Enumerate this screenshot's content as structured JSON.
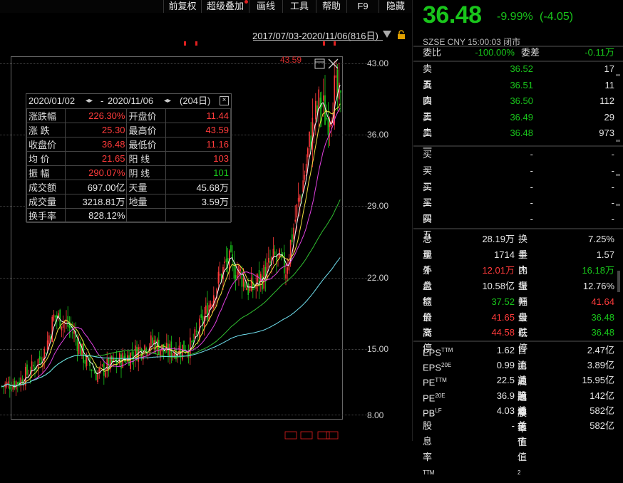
{
  "toolbar": {
    "items": [
      "前复权",
      "超级叠加",
      "画线",
      "工具",
      "帮助",
      "F9",
      "隐藏"
    ]
  },
  "chart": {
    "range_text": "2017/07/03-2020/11/06(816日)",
    "high_marker": "43.59",
    "y_ticks": [
      "43.00",
      "36.00",
      "29.00",
      "22.00",
      "15.00",
      "8.00"
    ]
  },
  "stats": {
    "period": "2020/01/02",
    "period_sep": "-",
    "period_end": "2020/11/06",
    "days": "(204日)",
    "rows": [
      {
        "l1": "涨跌幅",
        "v1": "226.30%",
        "c1": "red",
        "l2": "开盘价",
        "v2": "11.44",
        "c2": "red"
      },
      {
        "l1": "涨 跌",
        "v1": "25.30",
        "c1": "red",
        "l2": "最高价",
        "v2": "43.59",
        "c2": "red"
      },
      {
        "l1": "收盘价",
        "v1": "36.48",
        "c1": "red",
        "l2": "最低价",
        "v2": "11.16",
        "c2": "red"
      },
      {
        "l1": "均 价",
        "v1": "21.65",
        "c1": "red",
        "l2": "阳 线",
        "v2": "103",
        "c2": "red"
      },
      {
        "l1": "振 幅",
        "v1": "290.07%",
        "c1": "red",
        "l2": "阴 线",
        "v2": "101",
        "c2": "green"
      },
      {
        "l1": "成交额",
        "v1": "697.00亿",
        "c1": "white",
        "l2": "天量",
        "v2": "45.68万",
        "c2": "white"
      },
      {
        "l1": "成交量",
        "v1": "3218.81万",
        "c1": "white",
        "l2": "地量",
        "v2": "3.59万",
        "c2": "white"
      },
      {
        "l1": "换手率",
        "v1": "828.12%",
        "c1": "white",
        "l2": "",
        "v2": "",
        "c2": "white"
      }
    ]
  },
  "quote": {
    "price": "36.48",
    "change_pct": "-9.99%",
    "change_abs": "(-4.05)",
    "sub": "SZSE  CNY  15:00:03  闭市",
    "weibi_label": "委比",
    "weibi_value": "-100.00%",
    "weicha_label": "委差",
    "weicha_value": "-0.11万"
  },
  "sell_orders": [
    {
      "label": "卖五",
      "price": "36.52",
      "vol": "17"
    },
    {
      "label": "卖四",
      "price": "36.51",
      "vol": "11"
    },
    {
      "label": "卖三",
      "price": "36.50",
      "vol": "112"
    },
    {
      "label": "卖二",
      "price": "36.49",
      "vol": "29"
    },
    {
      "label": "卖一",
      "price": "36.48",
      "vol": "973"
    }
  ],
  "buy_orders": [
    {
      "label": "买一",
      "price": "-",
      "vol": "-"
    },
    {
      "label": "买二",
      "price": "-",
      "vol": "-"
    },
    {
      "label": "买三",
      "price": "-",
      "vol": "-"
    },
    {
      "label": "买四",
      "price": "-",
      "vol": "-"
    },
    {
      "label": "买五",
      "price": "-",
      "vol": "-"
    }
  ],
  "details": [
    {
      "l1": "总量",
      "v1": "28.19万",
      "c1": "white",
      "l2": "换手",
      "v2": "7.25%",
      "c2": "white"
    },
    {
      "l1": "现手",
      "v1": "1714",
      "c1": "white",
      "l2": "量比",
      "v2": "1.57",
      "c2": "white"
    },
    {
      "l1": "外盘",
      "v1": "12.01万",
      "c1": "red",
      "l2": "内盘",
      "v2": "16.18万",
      "c2": "green"
    },
    {
      "l1": "总额",
      "v1": "10.58亿",
      "c1": "white",
      "l2": "振幅",
      "v2": "12.76%",
      "c2": "white"
    },
    {
      "l1": "均价",
      "v1": "37.52",
      "c1": "green",
      "l2": "开盘",
      "v2": "41.64",
      "c2": "red"
    },
    {
      "l1": "最高",
      "v1": "41.65",
      "c1": "red",
      "l2": "最低",
      "v2": "36.48",
      "c2": "green"
    },
    {
      "l1": "涨停",
      "v1": "44.58",
      "c1": "red",
      "l2": "跌停",
      "v2": "36.48",
      "c2": "green"
    }
  ],
  "fundamentals": [
    {
      "l1": "EPS",
      "s1": "TTM",
      "v1": "1.62",
      "l2": "自由流通股本",
      "s2": "",
      "v2": "2.47亿"
    },
    {
      "l1": "EPS",
      "s1": "20E",
      "v1": "0.99",
      "l2": "流通股本",
      "s2": "",
      "v2": "3.89亿"
    },
    {
      "l1": "PE",
      "s1": "TTM",
      "v1": "22.5",
      "l2": "总股本",
      "s2": "",
      "v2": "15.95亿"
    },
    {
      "l1": "PE",
      "s1": "20E",
      "v1": "36.9",
      "l2": "流通值",
      "s2": "",
      "v2": "142亿"
    },
    {
      "l1": "PB",
      "s1": "LF",
      "v1": "4.03",
      "l2": "总市值",
      "s2": "1",
      "v2": "582亿"
    },
    {
      "l1": "股息率",
      "s1": "TTM",
      "v1": "-",
      "l2": "总市值",
      "s2": "2",
      "v2": "582亿"
    }
  ],
  "colors": {
    "up": "#ff3b3b",
    "down": "#19c51b",
    "ma5": "#f5f5f5",
    "ma10": "#f0e040",
    "ma20": "#e040e0",
    "ma60": "#30c030",
    "ma120": "#70e0f0"
  }
}
